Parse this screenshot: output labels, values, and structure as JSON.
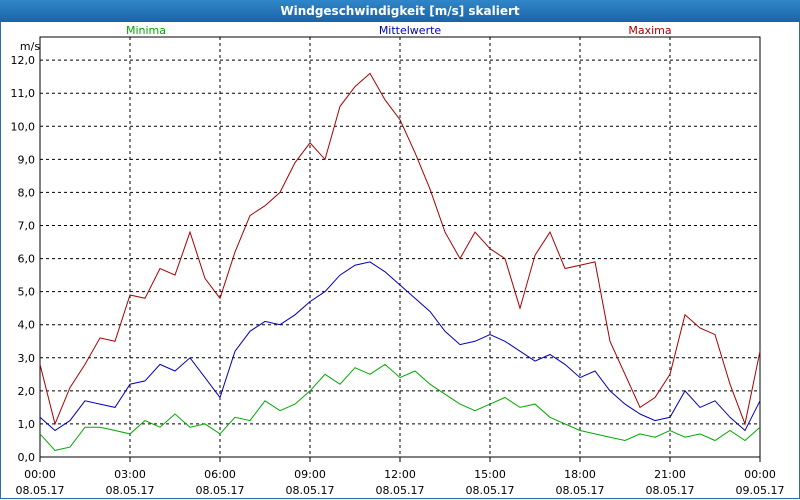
{
  "window": {
    "title": "Windgeschwindigkeit [m/s] skaliert"
  },
  "chart_data": {
    "type": "line",
    "title": "Windgeschwindigkeit [m/s] skaliert",
    "ylabel": "m/s",
    "ylim": [
      0,
      12.7
    ],
    "y_ticks": [
      "0,0",
      "1,0",
      "2,0",
      "3,0",
      "4,0",
      "5,0",
      "6,0",
      "7,0",
      "8,0",
      "9,0",
      "10,0",
      "11,0",
      "12,0"
    ],
    "x_ticks": [
      {
        "time": "00:00",
        "date": "08.05.17"
      },
      {
        "time": "03:00",
        "date": "08.05.17"
      },
      {
        "time": "06:00",
        "date": "08.05.17"
      },
      {
        "time": "09:00",
        "date": "08.05.17"
      },
      {
        "time": "12:00",
        "date": "08.05.17"
      },
      {
        "time": "15:00",
        "date": "08.05.17"
      },
      {
        "time": "18:00",
        "date": "08.05.17"
      },
      {
        "time": "21:00",
        "date": "08.05.17"
      },
      {
        "time": "00:00",
        "date": "09.05.17"
      }
    ],
    "xlim_hours": [
      0,
      24
    ],
    "grid": true,
    "series": [
      {
        "name": "Minima",
        "color": "#00aa00",
        "x": [
          0,
          0.5,
          1,
          1.5,
          2,
          2.5,
          3,
          3.5,
          4,
          4.5,
          5,
          5.5,
          6,
          6.5,
          7,
          7.5,
          8,
          8.5,
          9,
          9.5,
          10,
          10.5,
          11,
          11.5,
          12,
          12.5,
          13,
          13.5,
          14,
          14.5,
          15,
          15.5,
          16,
          16.5,
          17,
          17.5,
          18,
          18.5,
          19,
          19.5,
          20,
          20.5,
          21,
          21.5,
          22,
          22.5,
          23,
          23.5,
          24
        ],
        "values": [
          0.7,
          0.2,
          0.3,
          0.9,
          0.9,
          0.8,
          0.7,
          1.1,
          0.9,
          1.3,
          0.9,
          1.0,
          0.7,
          1.2,
          1.1,
          1.7,
          1.4,
          1.6,
          2.0,
          2.5,
          2.2,
          2.7,
          2.5,
          2.8,
          2.4,
          2.6,
          2.2,
          1.9,
          1.6,
          1.4,
          1.6,
          1.8,
          1.5,
          1.6,
          1.2,
          1.0,
          0.8,
          0.7,
          0.6,
          0.5,
          0.7,
          0.6,
          0.8,
          0.6,
          0.7,
          0.5,
          0.8,
          0.5,
          0.9
        ]
      },
      {
        "name": "Mittelwerte",
        "color": "#0000bb",
        "x": [
          0,
          0.5,
          1,
          1.5,
          2,
          2.5,
          3,
          3.5,
          4,
          4.5,
          5,
          5.5,
          6,
          6.5,
          7,
          7.5,
          8,
          8.5,
          9,
          9.5,
          10,
          10.5,
          11,
          11.5,
          12,
          12.5,
          13,
          13.5,
          14,
          14.5,
          15,
          15.5,
          16,
          16.5,
          17,
          17.5,
          18,
          18.5,
          19,
          19.5,
          20,
          20.5,
          21,
          21.5,
          22,
          22.5,
          23,
          23.5,
          24
        ],
        "values": [
          1.2,
          0.8,
          1.1,
          1.7,
          1.6,
          1.5,
          2.2,
          2.3,
          2.8,
          2.6,
          3.0,
          2.4,
          1.8,
          3.2,
          3.8,
          4.1,
          4.0,
          4.3,
          4.7,
          5.0,
          5.5,
          5.8,
          5.9,
          5.6,
          5.2,
          4.8,
          4.4,
          3.8,
          3.4,
          3.5,
          3.7,
          3.5,
          3.2,
          2.9,
          3.1,
          2.8,
          2.4,
          2.6,
          2.0,
          1.6,
          1.3,
          1.1,
          1.2,
          2.0,
          1.5,
          1.7,
          1.2,
          0.8,
          1.7
        ]
      },
      {
        "name": "Maxima",
        "color": "#aa0000",
        "x": [
          0,
          0.5,
          1,
          1.5,
          2,
          2.5,
          3,
          3.5,
          4,
          4.5,
          5,
          5.5,
          6,
          6.5,
          7,
          7.5,
          8,
          8.5,
          9,
          9.5,
          10,
          10.5,
          11,
          11.5,
          12,
          12.5,
          13,
          13.5,
          14,
          14.5,
          15,
          15.5,
          16,
          16.5,
          17,
          17.5,
          18,
          18.5,
          19,
          19.5,
          20,
          20.5,
          21,
          21.5,
          22,
          22.5,
          23,
          23.5,
          24
        ],
        "values": [
          2.8,
          1.0,
          2.1,
          2.8,
          3.6,
          3.5,
          4.9,
          4.8,
          5.7,
          5.5,
          6.8,
          5.4,
          4.8,
          6.2,
          7.3,
          7.6,
          8.0,
          8.9,
          9.5,
          9.0,
          10.6,
          11.2,
          11.6,
          10.8,
          10.2,
          9.2,
          8.1,
          6.8,
          6.0,
          6.8,
          6.3,
          6.0,
          4.5,
          6.1,
          6.8,
          5.7,
          5.8,
          5.9,
          3.5,
          2.5,
          1.5,
          1.8,
          2.5,
          4.3,
          3.9,
          3.7,
          2.2,
          1.0,
          3.2
        ]
      }
    ]
  }
}
